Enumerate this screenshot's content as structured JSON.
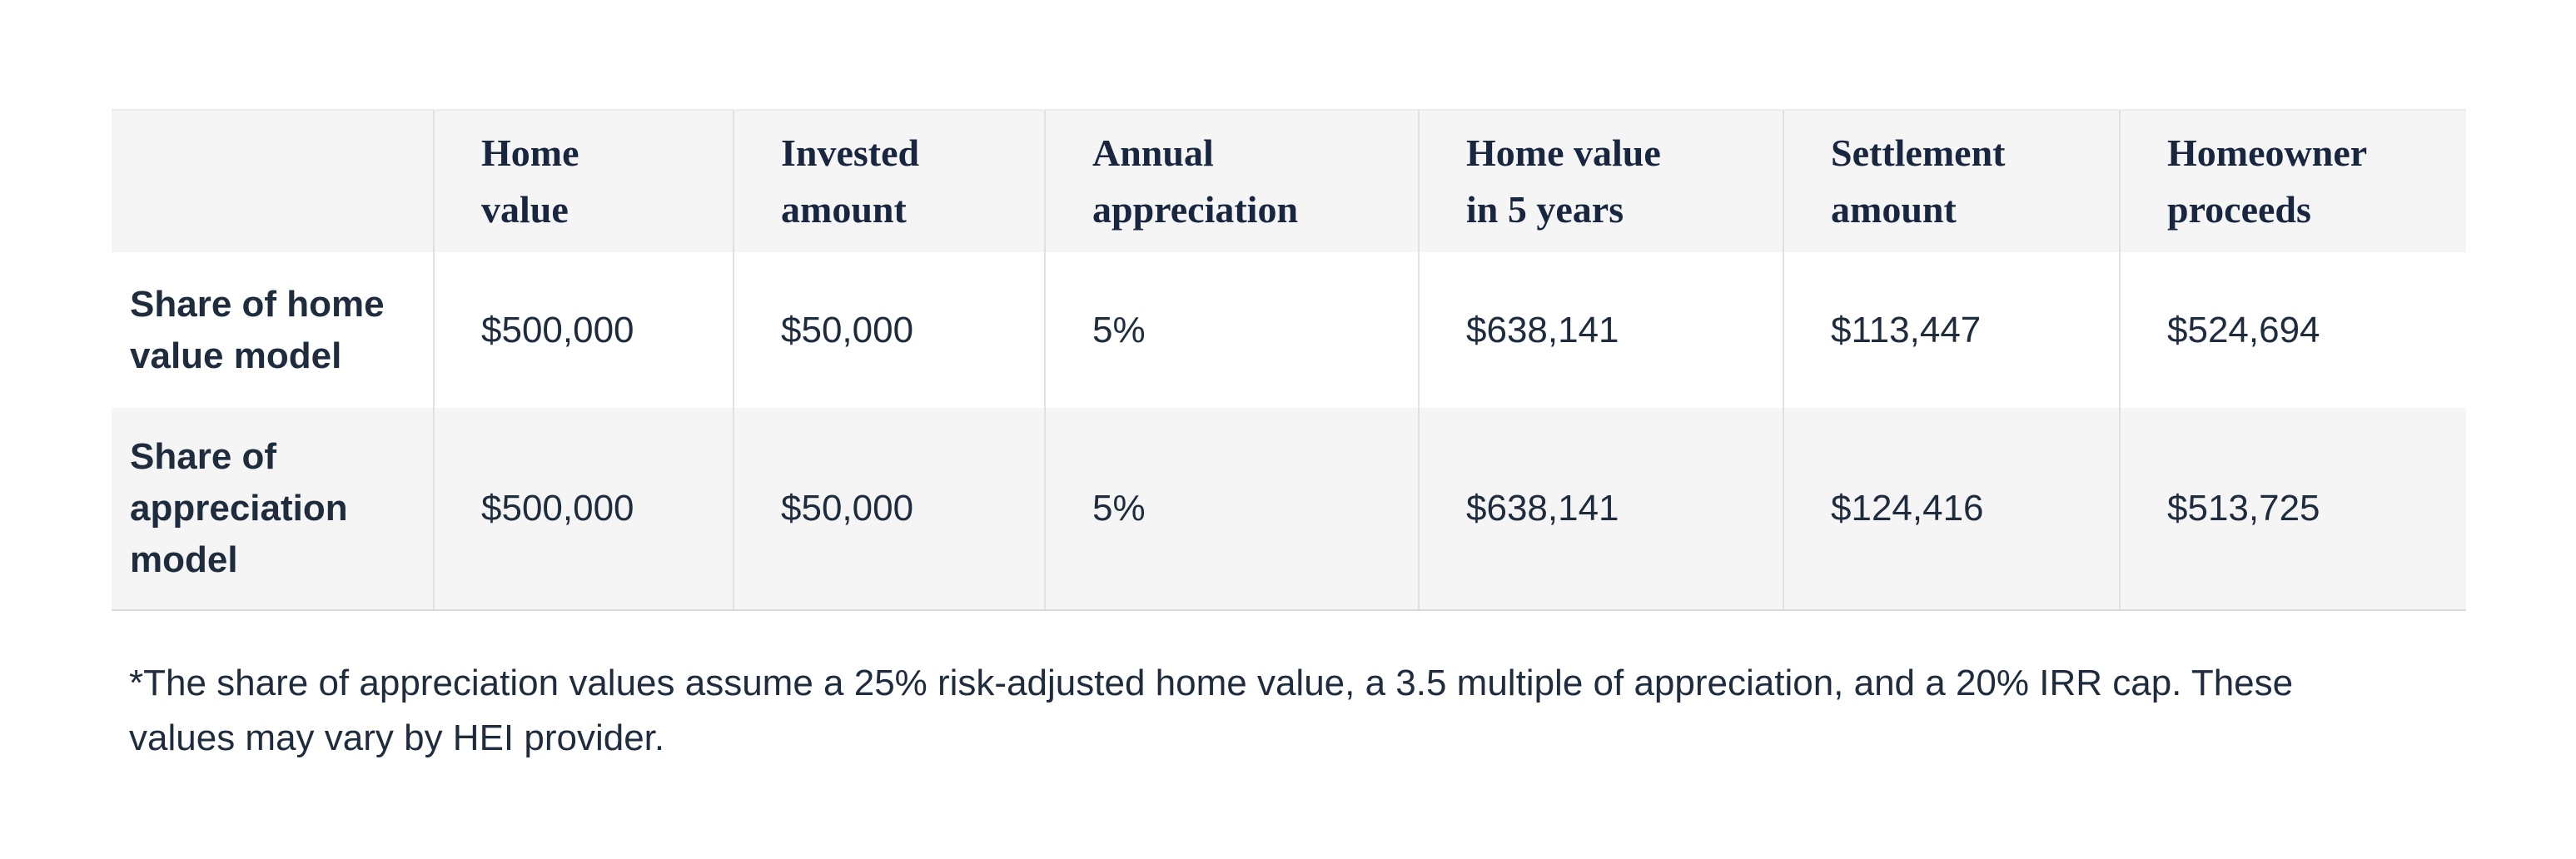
{
  "colors": {
    "text_header": "#18263f",
    "text_body": "#1e2c3e",
    "row_shade": "#f5f5f6",
    "column_divider": "#e0e0e2",
    "table_border_top": "#ececee",
    "table_border_bottom": "#d9d9db",
    "page_background": "#ffffff"
  },
  "table": {
    "columns": [
      "Home\nvalue",
      "Invested\namount",
      "Annual\nappreciation",
      "Home value\nin 5 years",
      "Settlement\namount",
      "Homeowner\nproceeds"
    ],
    "rows": [
      {
        "label": "Share of home\nvalue model",
        "values": [
          "$500,000",
          "$50,000",
          "5%",
          "$638,141",
          "$113,447",
          "$524,694"
        ]
      },
      {
        "label": "Share of\nappreciation\nmodel",
        "values": [
          "$500,000",
          "$50,000",
          "5%",
          "$638,141",
          "$124,416",
          "$513,725"
        ]
      }
    ]
  },
  "footnote": {
    "lines": [
      "*The share of appreciation values assume a 25% risk-adjusted home value, a 3.5 multiple of appreciation, and a 20% IRR cap. These",
      "values may vary by HEI provider."
    ]
  }
}
